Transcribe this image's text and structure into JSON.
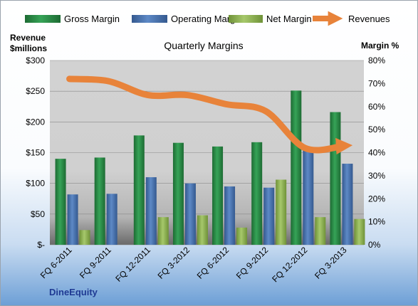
{
  "chart_data": {
    "type": "bar",
    "title": "Quarterly Margins",
    "brand_label": "DineEquity",
    "categories": [
      "FQ 6-2011",
      "FQ 9-2011",
      "FQ 12-2011",
      "FQ 3-2012",
      "FQ 6-2012",
      "FQ 9-2012",
      "FQ 12-2012",
      "FQ 3-2013"
    ],
    "y_left": {
      "label_line1": "Revenue",
      "label_line2": "$millions",
      "range": [
        0,
        300
      ],
      "ticks": [
        0,
        50,
        100,
        150,
        200,
        250,
        300
      ],
      "tick_labels": [
        "$-",
        "$50",
        "$100",
        "$150",
        "$200",
        "$250",
        "$300"
      ]
    },
    "y_right": {
      "label": "Margin %",
      "range": [
        0,
        80
      ],
      "ticks": [
        0,
        10,
        20,
        30,
        40,
        50,
        60,
        70,
        80
      ],
      "tick_labels": [
        "0%",
        "10%",
        "20%",
        "30%",
        "40%",
        "50%",
        "60%",
        "70%",
        "80%"
      ]
    },
    "series": [
      {
        "name": "Gross Margin",
        "type": "bar",
        "axis": "left",
        "color": "#2e8b46",
        "values": [
          140,
          142,
          178,
          166,
          160,
          167,
          251,
          216
        ]
      },
      {
        "name": "Operating Margin",
        "type": "bar",
        "axis": "left",
        "color": "#4f7ab8",
        "values": [
          82,
          83,
          110,
          100,
          95,
          93,
          157,
          132
        ]
      },
      {
        "name": "Net Margin",
        "type": "bar",
        "axis": "left",
        "color": "#94b655",
        "values": [
          24,
          0,
          45,
          48,
          28,
          106,
          45,
          42
        ]
      },
      {
        "name": "Revenues",
        "type": "line",
        "axis": "right",
        "color": "#e8833a",
        "values": [
          72,
          71,
          65,
          65,
          61,
          58,
          42,
          43
        ]
      }
    ],
    "grid": true,
    "legend_position": "top"
  }
}
